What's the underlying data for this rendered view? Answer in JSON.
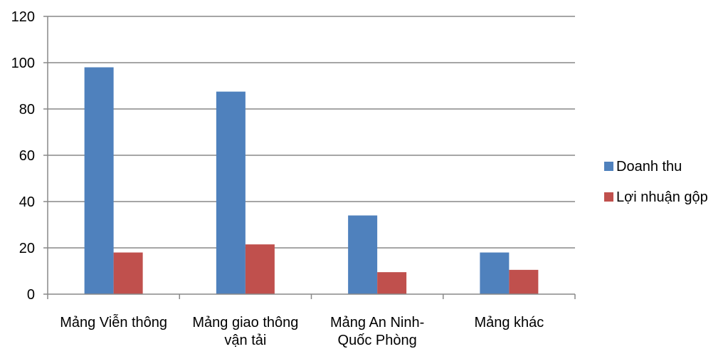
{
  "chart_data": {
    "type": "bar",
    "categories": [
      [
        "Mảng Viễn thông"
      ],
      [
        "Mảng giao thông",
        "vận tải"
      ],
      [
        "Mảng An Ninh-",
        "Quốc Phòng"
      ],
      [
        "Mảng khác"
      ]
    ],
    "series": [
      {
        "name": "Doanh thu",
        "color": "#4f81bd",
        "values": [
          98,
          87.5,
          34,
          18
        ]
      },
      {
        "name": "Lợi nhuận gộp",
        "color": "#c0504d",
        "values": [
          18,
          21.5,
          9.5,
          10.5
        ]
      }
    ],
    "ylim": [
      0,
      120
    ],
    "yticks": [
      0,
      20,
      40,
      60,
      80,
      100,
      120
    ],
    "grid": true,
    "legend": "right",
    "title": "",
    "xlabel": "",
    "ylabel": ""
  }
}
